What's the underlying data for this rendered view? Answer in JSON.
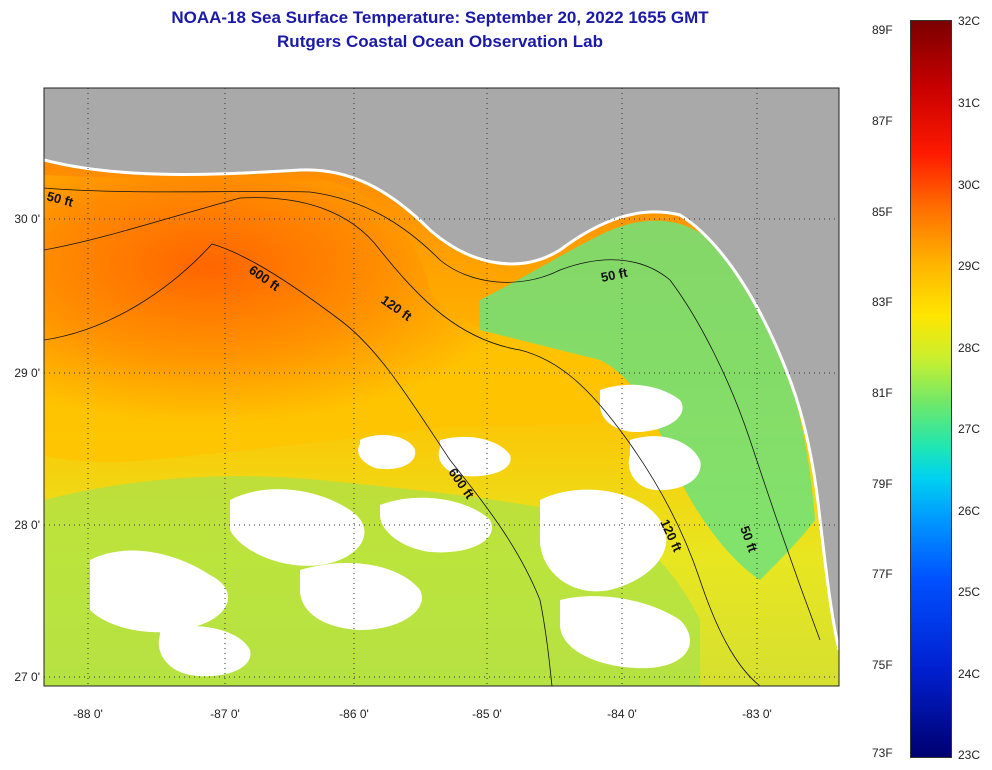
{
  "title": "NOAA-18 Sea Surface Temperature:  September 20, 2022 1655 GMT",
  "subtitle": "Rutgers Coastal Ocean Observation Lab",
  "map": {
    "longitude_labels": [
      "-88 0'",
      "-87 0'",
      "-86 0'",
      "-85 0'",
      "-84 0'",
      "-83 0'"
    ],
    "latitude_labels": [
      "30 0'",
      "29 0'",
      "28 0'",
      "27 0'"
    ],
    "contour_labels": {
      "west_50": "50 ft",
      "west_600": "600 ft",
      "mid_120": "120 ft",
      "east_50": "50 ft",
      "south_600": "600 ft",
      "south_120": "120 ft",
      "south_50": "50 ft"
    },
    "colors": {
      "land": "#a9a9a9",
      "cloud": "#ffffff",
      "warm": "#ff6a00",
      "mid": "#ffcc00",
      "cool": "#4fe07a"
    }
  },
  "colorbar": {
    "fahrenheit": [
      "89F",
      "87F",
      "85F",
      "83F",
      "81F",
      "79F",
      "77F",
      "75F",
      "73F"
    ],
    "celsius": [
      "32C",
      "31C",
      "30C",
      "29C",
      "28C",
      "27C",
      "26C",
      "25C",
      "24C",
      "23C"
    ]
  }
}
